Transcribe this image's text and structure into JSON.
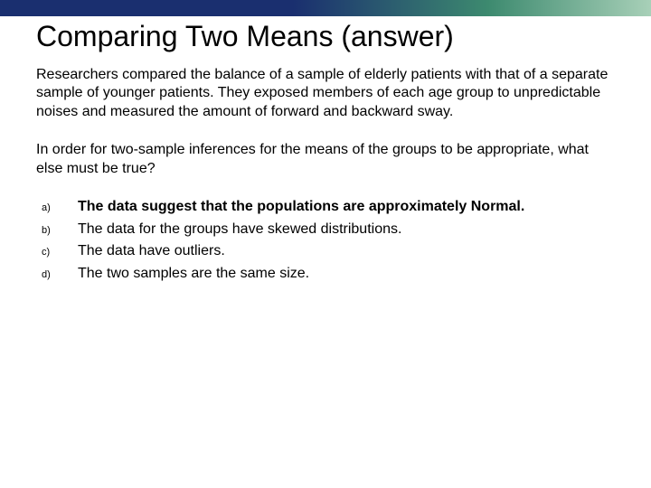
{
  "topbar": {
    "gradient_start": "#1a2f6f",
    "gradient_mid": "#3d8a6f",
    "gradient_end": "#a8d0b8"
  },
  "title": {
    "main": "Comparing Two Means",
    "suffix": "(answer)",
    "fontsize": 32,
    "color": "#000000"
  },
  "paragraph": {
    "text": "Researchers compared the balance of a sample of elderly patients with that of a separate sample of younger patients. They exposed members of each age group to unpredictable noises and measured the amount of forward and backward sway.",
    "fontsize": 16,
    "color": "#000000"
  },
  "question": {
    "text": "In order for two-sample inferences for the means of the groups to be appropriate, what else must be true?",
    "fontsize": 16,
    "color": "#000000"
  },
  "options": {
    "letters": [
      "a)",
      "b)",
      "c)",
      "d)"
    ],
    "items": [
      {
        "text": "The data suggest that the populations are approximately Normal.",
        "bold": true
      },
      {
        "text": "The data for the groups have skewed distributions.",
        "bold": false
      },
      {
        "text": "The data have outliers.",
        "bold": false
      },
      {
        "text": "The two samples are the same size.",
        "bold": false
      }
    ],
    "letter_fontsize": 11,
    "text_fontsize": 16
  },
  "background_color": "#ffffff"
}
